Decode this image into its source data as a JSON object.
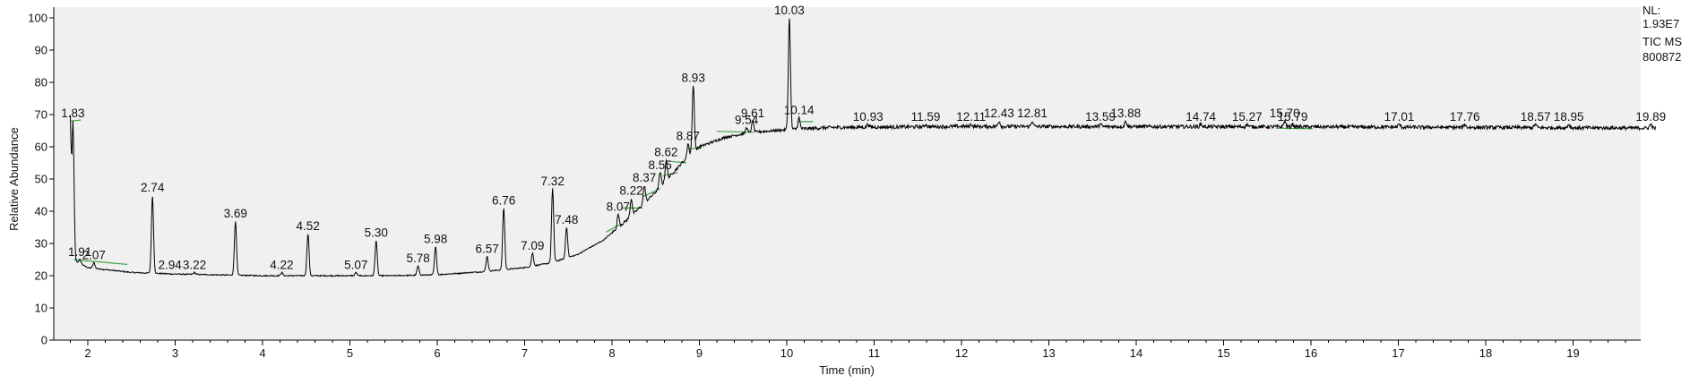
{
  "chart_data": {
    "type": "line",
    "title": "",
    "xlabel": "Time (min)",
    "ylabel": "Relative Abundance",
    "xlim": [
      1.8,
      19.95
    ],
    "ylim": [
      0,
      100
    ],
    "x_ticks": [
      2,
      3,
      4,
      5,
      6,
      7,
      8,
      9,
      10,
      11,
      12,
      13,
      14,
      15,
      16,
      17,
      18,
      19
    ],
    "y_ticks": [
      0,
      10,
      20,
      30,
      40,
      50,
      60,
      70,
      80,
      90,
      100
    ],
    "grid": false,
    "legend": "none",
    "plot_background": "#f0f0f0",
    "trace_color": "#000000",
    "integration_color": "#3fa33f",
    "info": [
      "NL:",
      "1.93E7",
      "TIC  MS",
      "800872"
    ],
    "baseline": [
      [
        1.8,
        68
      ],
      [
        1.82,
        30
      ],
      [
        1.86,
        24.5
      ],
      [
        2.0,
        22.5
      ],
      [
        2.5,
        21
      ],
      [
        3.0,
        20.5
      ],
      [
        4.0,
        20
      ],
      [
        5.0,
        20
      ],
      [
        5.5,
        20
      ],
      [
        6.0,
        20.3
      ],
      [
        6.5,
        21.2
      ],
      [
        7.0,
        22.5
      ],
      [
        7.3,
        24
      ],
      [
        7.6,
        26.5
      ],
      [
        7.9,
        31
      ],
      [
        8.2,
        38
      ],
      [
        8.5,
        46
      ],
      [
        8.8,
        55
      ],
      [
        9.0,
        60
      ],
      [
        9.3,
        63
      ],
      [
        9.6,
        64.5
      ],
      [
        10.0,
        65.3
      ],
      [
        10.5,
        66
      ],
      [
        12.0,
        66.3
      ],
      [
        16.0,
        66.2
      ],
      [
        19.95,
        65.8
      ]
    ],
    "peaks": [
      {
        "rt": "1.83",
        "x": 1.83,
        "y": 68
      },
      {
        "rt": "1.91",
        "x": 1.91,
        "y": 25
      },
      {
        "rt": "2.07",
        "x": 2.07,
        "y": 24
      },
      {
        "rt": "2.74",
        "x": 2.74,
        "y": 45
      },
      {
        "rt": "2.94",
        "x": 2.94,
        "y": 21
      },
      {
        "rt": "3.22",
        "x": 3.22,
        "y": 21
      },
      {
        "rt": "3.69",
        "x": 3.69,
        "y": 37
      },
      {
        "rt": "4.22",
        "x": 4.22,
        "y": 21
      },
      {
        "rt": "4.52",
        "x": 4.52,
        "y": 33
      },
      {
        "rt": "5.07",
        "x": 5.07,
        "y": 21
      },
      {
        "rt": "5.30",
        "x": 5.3,
        "y": 31
      },
      {
        "rt": "5.78",
        "x": 5.78,
        "y": 23
      },
      {
        "rt": "5.98",
        "x": 5.98,
        "y": 29
      },
      {
        "rt": "6.57",
        "x": 6.57,
        "y": 26
      },
      {
        "rt": "6.76",
        "x": 6.76,
        "y": 41
      },
      {
        "rt": "7.09",
        "x": 7.09,
        "y": 27
      },
      {
        "rt": "7.32",
        "x": 7.32,
        "y": 47
      },
      {
        "rt": "7.48",
        "x": 7.48,
        "y": 35
      },
      {
        "rt": "8.07",
        "x": 8.07,
        "y": 39
      },
      {
        "rt": "8.22",
        "x": 8.22,
        "y": 44
      },
      {
        "rt": "8.37",
        "x": 8.37,
        "y": 48
      },
      {
        "rt": "8.55",
        "x": 8.55,
        "y": 52
      },
      {
        "rt": "8.62",
        "x": 8.62,
        "y": 56
      },
      {
        "rt": "8.87",
        "x": 8.87,
        "y": 61
      },
      {
        "rt": "8.93",
        "x": 8.93,
        "y": 79
      },
      {
        "rt": "9.54",
        "x": 9.54,
        "y": 66
      },
      {
        "rt": "9.61",
        "x": 9.61,
        "y": 68
      },
      {
        "rt": "10.03",
        "x": 10.03,
        "y": 100
      },
      {
        "rt": "10.14",
        "x": 10.14,
        "y": 69
      },
      {
        "rt": "10.93",
        "x": 10.93,
        "y": 67
      },
      {
        "rt": "11.59",
        "x": 11.59,
        "y": 67
      },
      {
        "rt": "12.11",
        "x": 12.11,
        "y": 67
      },
      {
        "rt": "12.43",
        "x": 12.43,
        "y": 68
      },
      {
        "rt": "12.81",
        "x": 12.81,
        "y": 68
      },
      {
        "rt": "13.59",
        "x": 13.59,
        "y": 67
      },
      {
        "rt": "13.88",
        "x": 13.88,
        "y": 68
      },
      {
        "rt": "14.74",
        "x": 14.74,
        "y": 67
      },
      {
        "rt": "15.27",
        "x": 15.27,
        "y": 67
      },
      {
        "rt": "15.70",
        "x": 15.7,
        "y": 68
      },
      {
        "rt": "15.79",
        "x": 15.79,
        "y": 67
      },
      {
        "rt": "17.01",
        "x": 17.01,
        "y": 67
      },
      {
        "rt": "17.76",
        "x": 17.76,
        "y": 67
      },
      {
        "rt": "18.57",
        "x": 18.57,
        "y": 67
      },
      {
        "rt": "18.95",
        "x": 18.95,
        "y": 67
      },
      {
        "rt": "19.89",
        "x": 19.89,
        "y": 67
      }
    ],
    "integration_segments": [
      [
        1.8,
        68,
        1.92,
        68.3
      ],
      [
        1.84,
        25,
        2.45,
        23.5
      ],
      [
        7.93,
        33.5,
        8.1,
        36
      ],
      [
        8.1,
        41,
        8.35,
        41
      ],
      [
        8.35,
        44.5,
        8.55,
        47
      ],
      [
        8.58,
        51,
        8.75,
        52
      ],
      [
        8.66,
        55.5,
        8.85,
        55
      ],
      [
        8.87,
        59.5,
        9.02,
        59.5
      ],
      [
        9.2,
        64.8,
        9.62,
        64.5
      ],
      [
        10.12,
        67.8,
        10.3,
        67.8
      ],
      [
        15.6,
        65.8,
        16.02,
        65.6
      ]
    ]
  }
}
